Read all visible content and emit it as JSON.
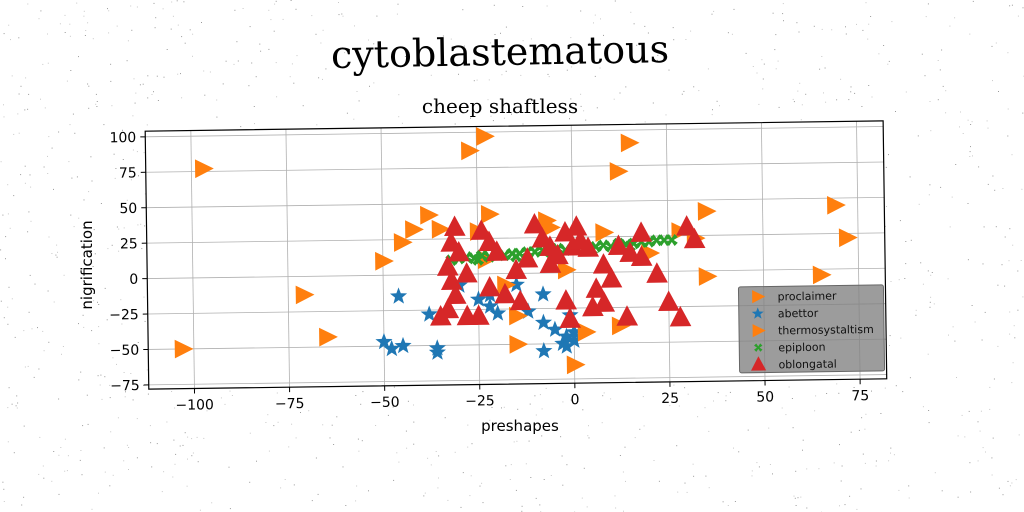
{
  "figure": {
    "suptitle": "cytoblastematous"
  },
  "chart_data": {
    "type": "scatter",
    "title": "cheep shaftless",
    "xlabel": "preshapes",
    "ylabel": "nigrification",
    "xlim": [
      -112,
      82
    ],
    "ylim": [
      -78,
      104
    ],
    "xticks": [
      -100,
      -75,
      -50,
      -25,
      0,
      25,
      50,
      75
    ],
    "xtick_labels": [
      "−100",
      "−75",
      "−50",
      "−25",
      "0",
      "25",
      "50",
      "75"
    ],
    "yticks": [
      -75,
      -50,
      -25,
      0,
      25,
      50,
      75,
      100
    ],
    "ytick_labels": [
      "−75",
      "−50",
      "−25",
      "0",
      "25",
      "50",
      "75",
      "100"
    ],
    "grid": true,
    "legend_position": "lower-right",
    "series": [
      {
        "name": "proclaimer",
        "marker": "triangle-right",
        "color": "#ff7f0e",
        "points": []
      },
      {
        "name": "abettor",
        "marker": "star",
        "color": "#1f77b4",
        "points": [
          [
            -46,
            -15
          ],
          [
            -50,
            -47
          ],
          [
            -48,
            -52
          ],
          [
            -45,
            -50
          ],
          [
            -38,
            -28
          ],
          [
            -36,
            -52
          ],
          [
            -36,
            -55
          ],
          [
            -30,
            -8
          ],
          [
            -25,
            -18
          ],
          [
            -22,
            -23
          ],
          [
            -20,
            -28
          ],
          [
            -15,
            -8
          ],
          [
            -12,
            -27
          ],
          [
            -8,
            -15
          ],
          [
            -8,
            -35
          ],
          [
            -8,
            -55
          ],
          [
            -5,
            -40
          ],
          [
            -3,
            -50
          ],
          [
            -2,
            -45
          ],
          [
            -2,
            -52
          ],
          [
            0,
            -42
          ],
          [
            0,
            -48
          ],
          [
            -1,
            -30
          ],
          [
            -22,
            -15
          ]
        ]
      },
      {
        "name": "thermosystaltism",
        "marker": "triangle-right",
        "color": "#ff7f0e",
        "points": [
          [
            -97,
            77
          ],
          [
            -27,
            87
          ],
          [
            -23,
            97
          ],
          [
            15,
            91
          ],
          [
            12,
            71
          ],
          [
            -103,
            -50
          ],
          [
            -71,
            -13
          ],
          [
            -65,
            -43
          ],
          [
            -50,
            10
          ],
          [
            -45,
            23
          ],
          [
            -42,
            32
          ],
          [
            -38,
            42
          ],
          [
            -35,
            32
          ],
          [
            -22,
            42
          ],
          [
            -25,
            30
          ],
          [
            -23,
            10
          ],
          [
            -18,
            -8
          ],
          [
            -15,
            -30
          ],
          [
            -15,
            -50
          ],
          [
            -7,
            37
          ],
          [
            -2,
            2
          ],
          [
            0,
            -65
          ],
          [
            -6,
            32
          ],
          [
            3,
            -42
          ],
          [
            8,
            28
          ],
          [
            12,
            -38
          ],
          [
            20,
            13
          ],
          [
            28,
            28
          ],
          [
            32,
            23
          ],
          [
            35,
            -4
          ],
          [
            35,
            42
          ],
          [
            69,
            45
          ],
          [
            72,
            22
          ],
          [
            65,
            -4
          ]
        ]
      },
      {
        "name": "epiploon",
        "marker": "x",
        "color": "#2ca02c",
        "points": [
          [
            -32,
            10
          ],
          [
            -30,
            11
          ],
          [
            -28,
            12
          ],
          [
            -26,
            11
          ],
          [
            -24,
            13
          ],
          [
            -22,
            12
          ],
          [
            -20,
            14
          ],
          [
            -18,
            13
          ],
          [
            -16,
            14
          ],
          [
            -14,
            14
          ],
          [
            -12,
            15
          ],
          [
            -10,
            15
          ],
          [
            -8,
            16
          ],
          [
            -6,
            15
          ],
          [
            -4,
            17
          ],
          [
            -2,
            16
          ],
          [
            0,
            17
          ],
          [
            2,
            18
          ],
          [
            4,
            17
          ],
          [
            6,
            18
          ],
          [
            8,
            19
          ],
          [
            10,
            18
          ],
          [
            12,
            20
          ],
          [
            14,
            19
          ],
          [
            16,
            20
          ],
          [
            18,
            21
          ],
          [
            20,
            21
          ],
          [
            22,
            22
          ],
          [
            24,
            22
          ],
          [
            26,
            22
          ],
          [
            -25,
            10
          ],
          [
            -15,
            12
          ],
          [
            -5,
            14
          ],
          [
            5,
            16
          ],
          [
            15,
            18
          ]
        ]
      },
      {
        "name": "oblongatal",
        "marker": "triangle-up",
        "color": "#d62728",
        "points": [
          [
            -31,
            33
          ],
          [
            -32,
            22
          ],
          [
            -30,
            15
          ],
          [
            -33,
            5
          ],
          [
            -32,
            -5
          ],
          [
            -31,
            -15
          ],
          [
            -33,
            -25
          ],
          [
            -28,
            -30
          ],
          [
            -25,
            -30
          ],
          [
            -24,
            30
          ],
          [
            -22,
            22
          ],
          [
            -20,
            15
          ],
          [
            -22,
            -10
          ],
          [
            -18,
            -15
          ],
          [
            -14,
            -20
          ],
          [
            -12,
            10
          ],
          [
            -10,
            34
          ],
          [
            -8,
            24
          ],
          [
            -6,
            18
          ],
          [
            -4,
            12
          ],
          [
            -2,
            28
          ],
          [
            -2,
            -20
          ],
          [
            -1,
            -33
          ],
          [
            1,
            32
          ],
          [
            0,
            18
          ],
          [
            2,
            22
          ],
          [
            4,
            17
          ],
          [
            6,
            -12
          ],
          [
            8,
            -22
          ],
          [
            8,
            5
          ],
          [
            10,
            -5
          ],
          [
            12,
            18
          ],
          [
            15,
            13
          ],
          [
            18,
            27
          ],
          [
            18,
            10
          ],
          [
            22,
            -2
          ],
          [
            25,
            -22
          ],
          [
            30,
            31
          ],
          [
            32,
            22
          ],
          [
            -35,
            -30
          ],
          [
            -28,
            0
          ],
          [
            -15,
            2
          ],
          [
            5,
            -25
          ],
          [
            -6,
            6
          ],
          [
            14,
            -32
          ],
          [
            28,
            -33
          ]
        ]
      }
    ]
  }
}
